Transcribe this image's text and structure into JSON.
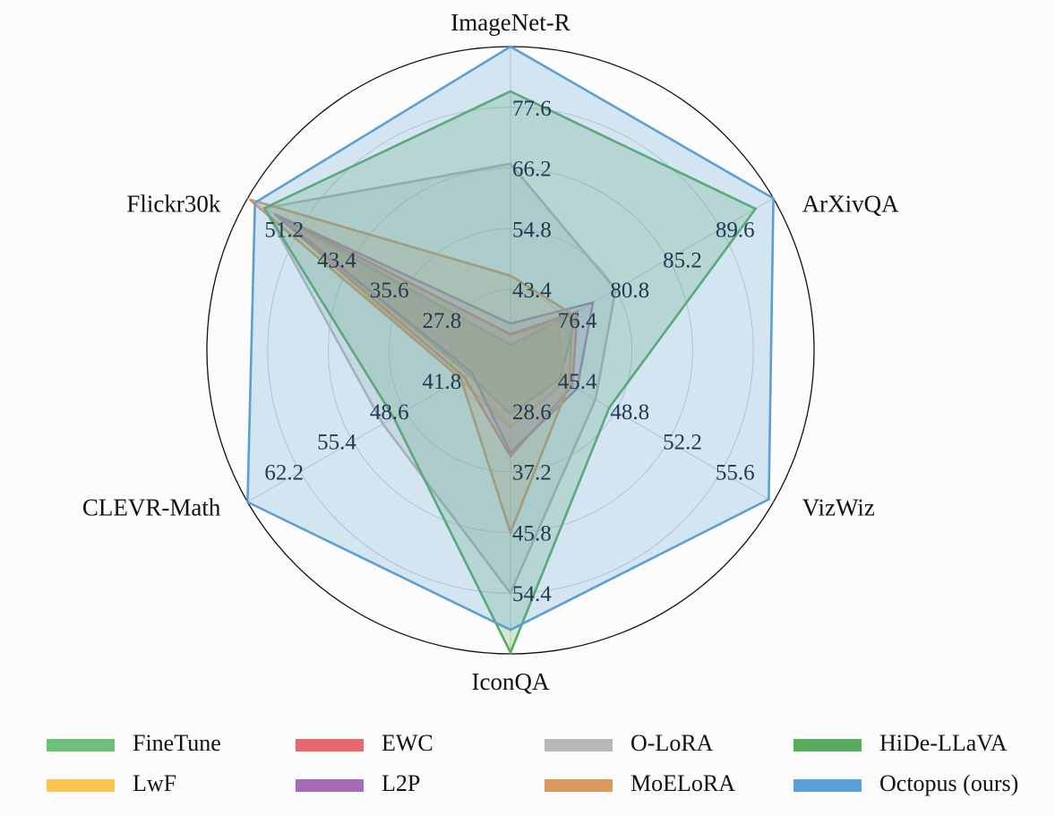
{
  "chart_data": {
    "type": "radar",
    "axes": [
      {
        "name": "ImageNet-R",
        "ticks": [
          "43.4",
          "54.8",
          "66.2",
          "77.6"
        ],
        "min": 32.0,
        "max": 89.0
      },
      {
        "name": "ArXivQA",
        "ticks": [
          "76.4",
          "80.8",
          "85.2",
          "89.6"
        ],
        "min": 72.0,
        "max": 94.0
      },
      {
        "name": "VizWiz",
        "ticks": [
          "45.4",
          "48.8",
          "52.2",
          "55.6"
        ],
        "min": 42.0,
        "max": 59.0
      },
      {
        "name": "IconQA",
        "ticks": [
          "28.6",
          "37.2",
          "45.8",
          "54.4"
        ],
        "min": 20.0,
        "max": 63.0
      },
      {
        "name": "CLEVR-Math",
        "ticks": [
          "41.8",
          "48.6",
          "55.4",
          "62.2"
        ],
        "min": 35.0,
        "max": 69.0
      },
      {
        "name": "Flickr30k",
        "ticks": [
          "27.8",
          "35.6",
          "43.4",
          "51.2"
        ],
        "min": 20.0,
        "max": 59.0
      }
    ],
    "series": [
      {
        "name": "FineTune",
        "color": "#6cc27b",
        "values": [
          33.0,
          77.6,
          45.2,
          29.0,
          40.4,
          54.0
        ]
      },
      {
        "name": "LwF",
        "color": "#f9c74f",
        "values": [
          35.0,
          76.0,
          45.5,
          31.0,
          41.5,
          54.6
        ]
      },
      {
        "name": "EWC",
        "color": "#e8676a",
        "values": [
          35.0,
          77.6,
          46.0,
          35.0,
          41.0,
          55.0
        ]
      },
      {
        "name": "L2P",
        "color": "#a66bb5",
        "values": [
          37.0,
          78.9,
          46.3,
          34.5,
          40.0,
          54.8
        ]
      },
      {
        "name": "O-LoRA",
        "color": "#b8b8b8",
        "values": [
          67.0,
          80.8,
          47.5,
          54.4,
          51.5,
          56.5
        ]
      },
      {
        "name": "MoELoRA",
        "color": "#d9995f",
        "values": [
          46.0,
          77.2,
          45.8,
          45.8,
          41.4,
          58.7
        ]
      },
      {
        "name": "HiDe-LLaVA",
        "color": "#5aab5e",
        "values": [
          80.6,
          92.5,
          48.4,
          62.8,
          50.1,
          56.5
        ]
      },
      {
        "name": "Octopus (ours)",
        "color": "#5b9fd4",
        "values": [
          89.0,
          94.0,
          58.7,
          59.6,
          69.0,
          57.9
        ]
      }
    ],
    "legend_position": "bottom",
    "grid": true
  }
}
